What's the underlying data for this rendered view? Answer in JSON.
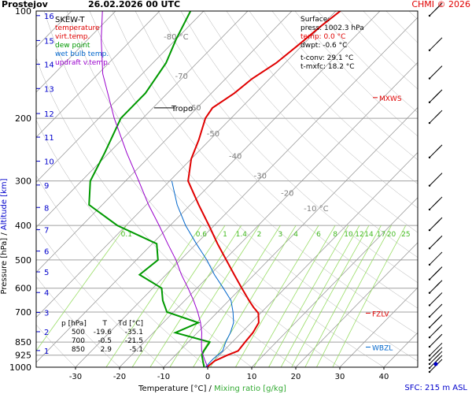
{
  "header": {
    "station": "Prostejov",
    "datetime": "26.02.2026 00 UTC",
    "copyright": "CHMI © 2026"
  },
  "footer": {
    "sfc": "SFC: 215 m ASL"
  },
  "legend": {
    "title": "SKEW-T",
    "items": [
      {
        "label": "temperature",
        "color": "#e00000"
      },
      {
        "label": "virt.temp.",
        "color": "#e00000"
      },
      {
        "label": "dew point",
        "color": "#009900"
      },
      {
        "label": "wet bulb temp.",
        "color": "#0066cc"
      },
      {
        "label": "updraft v.temp.",
        "color": "#9900cc"
      }
    ]
  },
  "surface": {
    "title": "Surface:",
    "press": "press: 1002.3 hPa",
    "temp": "temp: 0.0 °C",
    "dwpt": "dwpt: -0.6 °C",
    "tconv": "t-conv: 29.1 °C",
    "tmxfc": "t-mxfc: 18.2 °C"
  },
  "levels_table": {
    "headers": [
      "p [hPa]",
      "T",
      "Td [°C]"
    ],
    "rows": [
      [
        "500",
        "-19.6",
        "-35.1"
      ],
      [
        "700",
        "-0.5",
        "-21.5"
      ],
      [
        "850",
        "2.9",
        "-5.1"
      ]
    ]
  },
  "markers": {
    "tropo": "Tropo",
    "mxws": "MXWS",
    "fzlv": "FZLV",
    "wbzl": "WBZL"
  },
  "colors": {
    "temperature": "#e00000",
    "dewpoint": "#009900",
    "wetbulb": "#0066cc",
    "updraft": "#9900cc",
    "isotherm_label": "#808080",
    "mixing": "#99dd66",
    "altitude": "#0000cc",
    "grid": "#808080"
  },
  "chart_data": {
    "type": "line",
    "title": "SKEW-T",
    "xlabel": "Temperature [°C]",
    "xlabel2": "Mixing ratio [g/kg]",
    "ylabel": "Pressure [hPa]",
    "ylabel2": "Altitude [km]",
    "xlim": [
      -36,
      50
    ],
    "ylim": [
      100,
      1000
    ],
    "x_ticks": [
      -30,
      -20,
      -10,
      0,
      10,
      20,
      30,
      40
    ],
    "pressure_ticks": [
      100,
      200,
      300,
      400,
      500,
      600,
      700,
      850,
      925,
      1000
    ],
    "altitude_ticks": [
      1,
      2,
      3,
      4,
      5,
      6,
      7,
      8,
      9,
      10,
      11,
      12,
      13,
      14,
      15,
      16
    ],
    "isotherm_labels": [
      {
        "t": -80,
        "label": "-80 °C"
      },
      {
        "t": -70,
        "label": "-70"
      },
      {
        "t": -60,
        "label": "-60"
      },
      {
        "t": -50,
        "label": "-50"
      },
      {
        "t": -40,
        "label": "-40"
      },
      {
        "t": -30,
        "label": "-30"
      },
      {
        "t": -20,
        "label": "-20"
      },
      {
        "t": -10,
        "label": "-10 °C"
      }
    ],
    "mixing_ratio_labels": [
      "0.1",
      "0.6",
      "1",
      "1.4",
      "2",
      "3",
      "4",
      "6",
      "8",
      "10",
      "12",
      "14",
      "17",
      "20",
      "25"
    ],
    "tropopause_hpa": 187,
    "mxws_hpa": 175,
    "fzlv_hpa": 705,
    "wbzl_hpa": 878,
    "series": [
      {
        "name": "temperature",
        "p": [
          1000,
          960,
          925,
          900,
          850,
          800,
          750,
          705,
          680,
          650,
          600,
          550,
          500,
          450,
          400,
          350,
          300,
          260,
          230,
          200,
          187,
          170,
          155,
          140,
          125,
          110,
          100
        ],
        "t": [
          -0.2,
          0.2,
          1.8,
          3.3,
          2.9,
          2.6,
          1.7,
          -0.5,
          -2.8,
          -5.4,
          -9.8,
          -14.5,
          -19.6,
          -25.2,
          -31.2,
          -38.1,
          -45.8,
          -50.0,
          -52.5,
          -55.8,
          -56.5,
          -54.8,
          -54.0,
          -52.0,
          -51.0,
          -50.0,
          -49.0
        ]
      },
      {
        "name": "dew point",
        "p": [
          1000,
          960,
          925,
          900,
          850,
          800,
          750,
          700,
          650,
          600,
          550,
          500,
          450,
          400,
          350,
          300,
          250,
          200,
          170,
          140,
          120,
          100
        ],
        "t": [
          -0.8,
          -2.5,
          -4.0,
          -4.5,
          -5.1,
          -15.0,
          -12.0,
          -21.5,
          -25.0,
          -28.0,
          -36.0,
          -35.1,
          -39.0,
          -52.0,
          -63.0,
          -68.0,
          -71.0,
          -75.0,
          -75.0,
          -77.0,
          -80.0,
          -83.0
        ]
      },
      {
        "name": "wet bulb temp.",
        "p": [
          1000,
          950,
          900,
          850,
          800,
          750,
          700,
          650,
          600,
          550,
          500,
          450,
          400,
          350,
          300
        ],
        "t": [
          -0.5,
          -0.6,
          -0.2,
          -1.5,
          -2.5,
          -4.0,
          -6.5,
          -9.5,
          -14.0,
          -19.0,
          -24.0,
          -30.0,
          -36.5,
          -43.0,
          -49.5
        ]
      },
      {
        "name": "updraft v.temp.",
        "p": [
          1000,
          950,
          900,
          850,
          800,
          750,
          700,
          650,
          600,
          550,
          500,
          450,
          400,
          350,
          300,
          250,
          200,
          150,
          120,
          100
        ],
        "t": [
          0.0,
          -2.5,
          -5.0,
          -7.0,
          -9.0,
          -11.5,
          -14.5,
          -18.0,
          -22.0,
          -26.5,
          -31.0,
          -36.5,
          -42.5,
          -49.5,
          -57.0,
          -66.0,
          -76.5,
          -89.0,
          -97.0,
          -103.0
        ]
      }
    ]
  }
}
